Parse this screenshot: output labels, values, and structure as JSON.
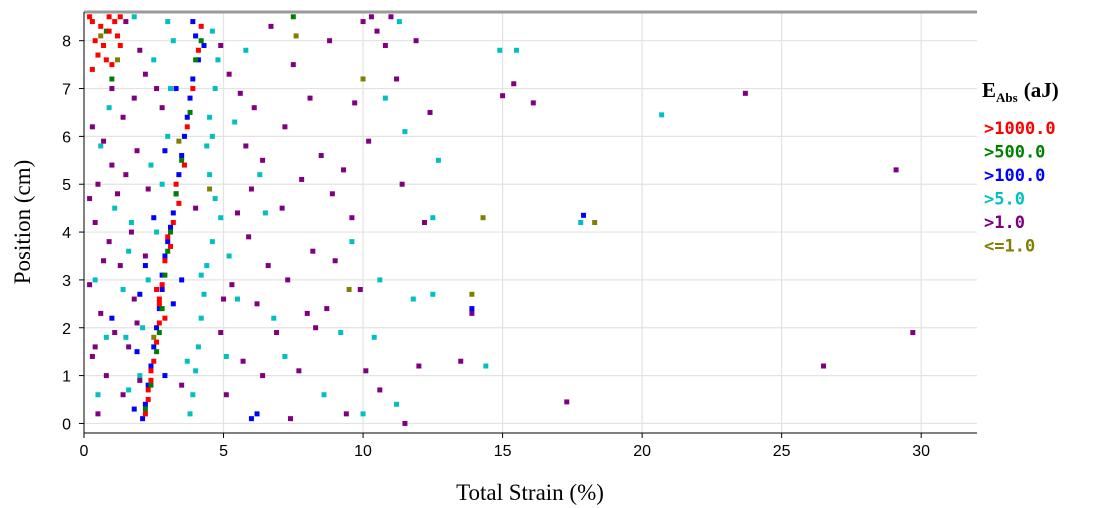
{
  "chart_data": {
    "type": "scatter",
    "xlabel": "Total Strain (%)",
    "ylabel": "Position (cm)",
    "xlim": [
      0,
      32
    ],
    "ylim": [
      -0.2,
      8.6
    ],
    "xticks": [
      0,
      5,
      10,
      15,
      20,
      25,
      30
    ],
    "yticks": [
      0,
      1,
      2,
      3,
      4,
      5,
      6,
      7,
      8
    ],
    "grid": true,
    "legend_placement": "right",
    "legend_title": {
      "main": "E",
      "sub": "Abs",
      "unit": "(aJ)"
    },
    "series": [
      {
        "name": ">1000.0",
        "color": "#ff0000",
        "points": [
          [
            0.3,
            8.4
          ],
          [
            0.6,
            8.3
          ],
          [
            0.9,
            8.2
          ],
          [
            1.1,
            8.4
          ],
          [
            0.4,
            8.0
          ],
          [
            0.7,
            7.9
          ],
          [
            1.2,
            8.1
          ],
          [
            0.5,
            7.7
          ],
          [
            0.8,
            7.6
          ],
          [
            1.0,
            7.5
          ],
          [
            0.3,
            7.4
          ],
          [
            1.3,
            7.9
          ],
          [
            0.2,
            8.5
          ],
          [
            0.9,
            8.5
          ],
          [
            1.3,
            8.5
          ],
          [
            4.2,
            8.3
          ],
          [
            4.1,
            7.8
          ],
          [
            3.9,
            7.0
          ],
          [
            3.7,
            6.2
          ],
          [
            3.6,
            5.4
          ],
          [
            3.4,
            4.6
          ],
          [
            3.2,
            4.2
          ],
          [
            3.0,
            3.9
          ],
          [
            2.9,
            3.4
          ],
          [
            2.8,
            2.9
          ],
          [
            2.7,
            2.5
          ],
          [
            2.7,
            2.1
          ],
          [
            2.6,
            1.7
          ],
          [
            2.5,
            1.3
          ],
          [
            2.4,
            0.9
          ],
          [
            2.3,
            0.5
          ],
          [
            2.2,
            0.2
          ],
          [
            2.9,
            2.2
          ],
          [
            2.6,
            2.8
          ],
          [
            3.1,
            3.7
          ],
          [
            2.4,
            1.1
          ],
          [
            2.3,
            0.7
          ],
          [
            3.3,
            5.0
          ],
          [
            2.7,
            2.6
          ]
        ]
      },
      {
        "name": ">500.0",
        "color": "#008000",
        "points": [
          [
            3.8,
            6.5
          ],
          [
            3.5,
            5.5
          ],
          [
            3.3,
            4.8
          ],
          [
            3.1,
            4.0
          ],
          [
            2.9,
            3.1
          ],
          [
            2.8,
            2.4
          ],
          [
            2.6,
            1.5
          ],
          [
            2.4,
            0.8
          ],
          [
            2.2,
            0.3
          ],
          [
            4.0,
            7.6
          ],
          [
            4.2,
            8.0
          ],
          [
            0.8,
            8.2
          ],
          [
            1.0,
            7.2
          ],
          [
            7.5,
            8.5
          ],
          [
            2.7,
            1.9
          ],
          [
            3.0,
            3.6
          ]
        ]
      },
      {
        "name": ">100.0",
        "color": "#0000ff",
        "points": [
          [
            3.9,
            8.4
          ],
          [
            4.0,
            8.1
          ],
          [
            4.1,
            7.6
          ],
          [
            3.9,
            7.2
          ],
          [
            3.8,
            6.8
          ],
          [
            3.7,
            6.4
          ],
          [
            3.6,
            6.0
          ],
          [
            3.5,
            5.6
          ],
          [
            3.4,
            5.2
          ],
          [
            3.3,
            4.8
          ],
          [
            3.2,
            4.4
          ],
          [
            3.1,
            4.1
          ],
          [
            3.0,
            3.8
          ],
          [
            2.9,
            3.5
          ],
          [
            2.8,
            3.1
          ],
          [
            2.8,
            2.8
          ],
          [
            2.7,
            2.4
          ],
          [
            2.6,
            2.0
          ],
          [
            2.5,
            1.6
          ],
          [
            2.4,
            1.2
          ],
          [
            2.3,
            0.8
          ],
          [
            2.2,
            0.4
          ],
          [
            2.1,
            0.1
          ],
          [
            1.8,
            0.3
          ],
          [
            1.9,
            1.5
          ],
          [
            2.0,
            2.7
          ],
          [
            2.2,
            3.3
          ],
          [
            2.5,
            4.3
          ],
          [
            2.9,
            5.7
          ],
          [
            3.3,
            7.0
          ],
          [
            1.0,
            2.2
          ],
          [
            6.2,
            0.2
          ],
          [
            6.0,
            0.1
          ],
          [
            17.9,
            4.35
          ],
          [
            13.9,
            2.4
          ],
          [
            3.5,
            3.0
          ],
          [
            3.2,
            2.5
          ],
          [
            2.9,
            1.0
          ],
          [
            4.3,
            7.9
          ]
        ]
      },
      {
        "name": ">5.0",
        "color": "#00c0c0",
        "points": [
          [
            3.0,
            8.4
          ],
          [
            3.2,
            8.0
          ],
          [
            4.6,
            8.2
          ],
          [
            4.8,
            7.6
          ],
          [
            4.7,
            7.0
          ],
          [
            4.5,
            6.4
          ],
          [
            4.4,
            5.8
          ],
          [
            4.5,
            5.2
          ],
          [
            4.7,
            4.7
          ],
          [
            4.9,
            4.3
          ],
          [
            4.6,
            3.8
          ],
          [
            4.4,
            3.3
          ],
          [
            4.3,
            2.7
          ],
          [
            4.2,
            2.2
          ],
          [
            4.1,
            1.6
          ],
          [
            4.0,
            1.1
          ],
          [
            3.9,
            0.6
          ],
          [
            3.8,
            0.2
          ],
          [
            2.0,
            1.0
          ],
          [
            2.1,
            2.0
          ],
          [
            2.3,
            3.0
          ],
          [
            2.6,
            4.0
          ],
          [
            2.8,
            5.0
          ],
          [
            3.0,
            6.0
          ],
          [
            3.1,
            7.0
          ],
          [
            1.7,
            4.2
          ],
          [
            1.6,
            3.6
          ],
          [
            1.4,
            2.8
          ],
          [
            1.5,
            1.8
          ],
          [
            1.6,
            0.7
          ],
          [
            5.2,
            3.5
          ],
          [
            5.5,
            2.6
          ],
          [
            5.1,
            1.4
          ],
          [
            5.4,
            6.3
          ],
          [
            6.5,
            4.4
          ],
          [
            6.8,
            2.2
          ],
          [
            7.2,
            1.4
          ],
          [
            8.6,
            0.6
          ],
          [
            9.2,
            1.9
          ],
          [
            9.6,
            3.8
          ],
          [
            10.6,
            3.0
          ],
          [
            10.4,
            1.8
          ],
          [
            11.2,
            0.4
          ],
          [
            11.8,
            2.6
          ],
          [
            12.5,
            4.3
          ],
          [
            12.7,
            5.5
          ],
          [
            11.5,
            6.1
          ],
          [
            10.8,
            6.8
          ],
          [
            11.3,
            8.4
          ],
          [
            14.9,
            7.8
          ],
          [
            15.5,
            7.8
          ],
          [
            12.5,
            2.7
          ],
          [
            14.4,
            1.2
          ],
          [
            20.7,
            6.45
          ],
          [
            17.8,
            4.2
          ],
          [
            0.5,
            0.6
          ],
          [
            0.8,
            1.8
          ],
          [
            0.4,
            3.0
          ],
          [
            0.6,
            5.8
          ],
          [
            0.9,
            6.6
          ],
          [
            1.1,
            4.5
          ],
          [
            1.8,
            8.5
          ],
          [
            2.5,
            7.6
          ],
          [
            5.8,
            7.8
          ],
          [
            6.3,
            5.2
          ],
          [
            10.0,
            0.2
          ],
          [
            3.7,
            1.3
          ],
          [
            4.2,
            3.1
          ],
          [
            2.4,
            5.4
          ],
          [
            4.6,
            6.0
          ]
        ]
      },
      {
        "name": ">1.0",
        "color": "#800080",
        "points": [
          [
            1.5,
            8.4
          ],
          [
            2.0,
            7.8
          ],
          [
            2.2,
            7.3
          ],
          [
            1.8,
            6.8
          ],
          [
            1.4,
            6.4
          ],
          [
            0.3,
            6.2
          ],
          [
            0.7,
            5.9
          ],
          [
            1.0,
            5.4
          ],
          [
            0.5,
            5.0
          ],
          [
            1.2,
            4.8
          ],
          [
            0.4,
            4.2
          ],
          [
            0.9,
            3.8
          ],
          [
            1.3,
            3.3
          ],
          [
            0.2,
            2.9
          ],
          [
            0.6,
            2.3
          ],
          [
            1.1,
            1.9
          ],
          [
            0.3,
            1.4
          ],
          [
            0.8,
            1.0
          ],
          [
            1.4,
            0.6
          ],
          [
            0.5,
            0.2
          ],
          [
            2.6,
            7.0
          ],
          [
            2.8,
            6.6
          ],
          [
            1.9,
            5.7
          ],
          [
            2.3,
            4.9
          ],
          [
            1.7,
            4.0
          ],
          [
            2.2,
            3.5
          ],
          [
            1.8,
            2.6
          ],
          [
            1.6,
            1.6
          ],
          [
            2.0,
            0.9
          ],
          [
            4.9,
            7.9
          ],
          [
            5.2,
            7.3
          ],
          [
            5.6,
            6.9
          ],
          [
            6.1,
            6.6
          ],
          [
            5.8,
            5.8
          ],
          [
            6.4,
            5.5
          ],
          [
            6.0,
            4.9
          ],
          [
            5.5,
            4.4
          ],
          [
            5.9,
            3.9
          ],
          [
            6.6,
            3.3
          ],
          [
            5.3,
            2.9
          ],
          [
            6.2,
            2.5
          ],
          [
            6.9,
            1.9
          ],
          [
            5.7,
            1.3
          ],
          [
            6.4,
            1.0
          ],
          [
            5.1,
            0.6
          ],
          [
            7.4,
            0.1
          ],
          [
            7.7,
            1.1
          ],
          [
            8.0,
            2.3
          ],
          [
            7.3,
            3.0
          ],
          [
            8.2,
            3.6
          ],
          [
            7.1,
            4.5
          ],
          [
            7.8,
            5.1
          ],
          [
            8.5,
            5.6
          ],
          [
            7.2,
            6.2
          ],
          [
            8.1,
            6.8
          ],
          [
            7.5,
            7.5
          ],
          [
            8.8,
            8.0
          ],
          [
            10.0,
            8.4
          ],
          [
            10.5,
            8.2
          ],
          [
            10.8,
            7.9
          ],
          [
            11.2,
            7.2
          ],
          [
            9.7,
            6.7
          ],
          [
            10.2,
            5.9
          ],
          [
            9.3,
            5.3
          ],
          [
            8.9,
            4.8
          ],
          [
            9.6,
            4.3
          ],
          [
            9.0,
            3.4
          ],
          [
            9.9,
            2.8
          ],
          [
            8.7,
            2.4
          ],
          [
            10.1,
            1.1
          ],
          [
            10.6,
            0.7
          ],
          [
            11.5,
            0.0
          ],
          [
            12.0,
            1.2
          ],
          [
            11.0,
            8.5
          ],
          [
            11.9,
            8.0
          ],
          [
            12.4,
            6.5
          ],
          [
            10.3,
            8.5
          ],
          [
            13.5,
            1.3
          ],
          [
            13.9,
            2.3
          ],
          [
            15.0,
            6.85
          ],
          [
            15.4,
            7.1
          ],
          [
            16.1,
            6.7
          ],
          [
            17.3,
            0.45
          ],
          [
            23.7,
            6.9
          ],
          [
            26.5,
            1.2
          ],
          [
            29.1,
            5.3
          ],
          [
            29.7,
            1.9
          ],
          [
            1.0,
            7.0
          ],
          [
            1.5,
            5.2
          ],
          [
            0.7,
            3.4
          ],
          [
            0.4,
            1.6
          ],
          [
            6.7,
            8.3
          ],
          [
            4.9,
            1.9
          ],
          [
            5.0,
            2.6
          ],
          [
            3.5,
            0.8
          ],
          [
            4.0,
            4.5
          ],
          [
            8.3,
            2.0
          ],
          [
            9.4,
            0.2
          ],
          [
            11.4,
            5.0
          ],
          [
            12.2,
            4.2
          ],
          [
            0.2,
            4.7
          ],
          [
            1.9,
            2.1
          ]
        ]
      },
      {
        "name": "<=1.0",
        "color": "#808000",
        "points": [
          [
            14.3,
            4.3
          ],
          [
            18.3,
            4.2
          ],
          [
            13.9,
            2.7
          ],
          [
            7.6,
            8.1
          ],
          [
            0.6,
            8.1
          ],
          [
            1.2,
            7.6
          ],
          [
            3.4,
            5.9
          ],
          [
            2.5,
            1.8
          ],
          [
            4.5,
            4.9
          ],
          [
            10.0,
            7.2
          ],
          [
            9.5,
            2.8
          ]
        ]
      }
    ]
  }
}
